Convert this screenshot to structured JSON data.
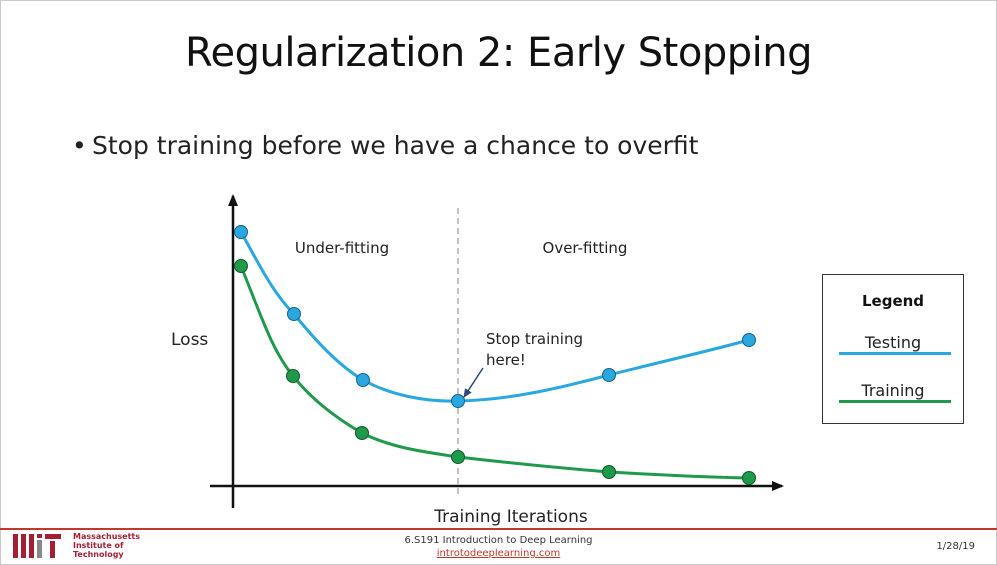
{
  "slide": {
    "title": "Regularization 2: Early Stopping",
    "bullet": "Stop training before we have a chance to overfit"
  },
  "diagram": {
    "y_label": "Loss",
    "x_label": "Training Iterations",
    "region_left": "Under-fitting",
    "region_right": "Over-fitting",
    "annotation_line1": "Stop training",
    "annotation_line2": "here!",
    "colors": {
      "testing": "#29a8e0",
      "training": "#1f9a4a",
      "axis": "#111111"
    }
  },
  "legend": {
    "title": "Legend",
    "testing": "Testing",
    "training": "Training"
  },
  "footer": {
    "institution_line1": "Massachusetts",
    "institution_line2": "Institute of",
    "institution_line3": "Technology",
    "course": "6.S191 Introduction to Deep Learning",
    "link": "introtodeeplearning.com",
    "date": "1/28/19"
  }
}
